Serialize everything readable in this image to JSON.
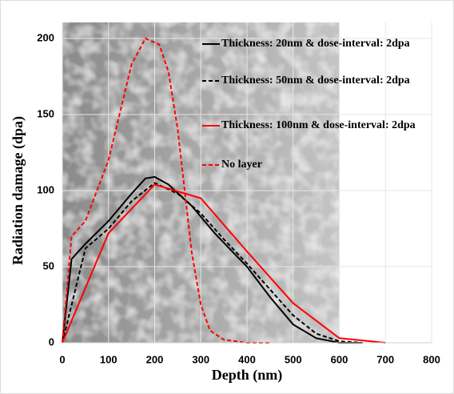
{
  "chart_data": {
    "type": "line",
    "x_label": "Depth (nm)",
    "y_label": "Radiation damage (dpa)",
    "xlim": [
      0,
      800
    ],
    "xticks": [
      0,
      100,
      200,
      300,
      400,
      500,
      600,
      700,
      800
    ],
    "ylim": [
      0,
      200
    ],
    "yticks": [
      0,
      50,
      100,
      150,
      200
    ],
    "grid": true,
    "legend": "upper-right",
    "series": [
      {
        "name": "Thickness: 20nm & dose-interval: 2dpa",
        "color": "#000000",
        "style": "solid",
        "x": [
          0,
          20,
          50,
          100,
          150,
          180,
          200,
          230,
          280,
          330,
          400,
          450,
          500,
          550,
          600,
          650
        ],
        "values": [
          0,
          55,
          65,
          80,
          98,
          108,
          109,
          104,
          90,
          72,
          50,
          30,
          12,
          3,
          0,
          0
        ]
      },
      {
        "name": "Thickness: 50nm & dose-interval: 2dpa",
        "color": "#000000",
        "style": "dashed",
        "x": [
          0,
          50,
          100,
          150,
          200,
          250,
          300,
          350,
          400,
          450,
          500,
          550,
          600,
          650
        ],
        "values": [
          0,
          62,
          75,
          93,
          105,
          98,
          85,
          68,
          52,
          35,
          18,
          6,
          1,
          0
        ]
      },
      {
        "name": "Thickness: 100nm & dose-interval: 2dpa",
        "color": "#ff0000",
        "style": "solid",
        "x": [
          0,
          100,
          200,
          300,
          400,
          500,
          600,
          700
        ],
        "values": [
          0,
          72,
          104,
          95,
          60,
          26,
          3,
          0
        ]
      },
      {
        "name": "No layer",
        "color": "#ff0000",
        "style": "dashed",
        "x": [
          0,
          20,
          50,
          100,
          150,
          180,
          210,
          230,
          250,
          280,
          300,
          320,
          350,
          400,
          450
        ],
        "values": [
          0,
          70,
          80,
          120,
          183,
          200,
          196,
          178,
          140,
          60,
          25,
          8,
          2,
          0,
          0
        ]
      }
    ]
  }
}
